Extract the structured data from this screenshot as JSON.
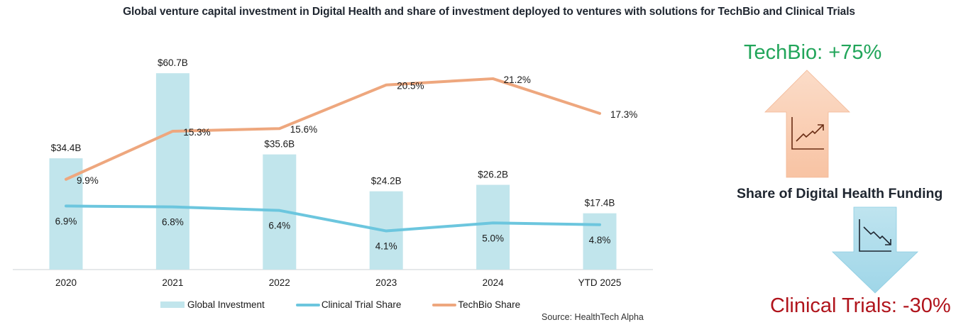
{
  "title": "Global venture capital investment in Digital Health and share of investment deployed to ventures with solutions for TechBio and Clinical Trials",
  "chart_data": {
    "type": "bar",
    "title": "Global venture capital investment in Digital Health and share of investment deployed to ventures with solutions for TechBio and Clinical Trials",
    "categories": [
      "2020",
      "2021",
      "2022",
      "2023",
      "2024",
      "YTD 2025"
    ],
    "series": [
      {
        "name": "Global Investment",
        "type": "bar",
        "unit": "$B",
        "values": [
          34.4,
          60.7,
          35.6,
          24.2,
          26.2,
          17.4
        ],
        "labels": [
          "$34.4B",
          "$60.7B",
          "$35.6B",
          "$24.2B",
          "$26.2B",
          "$17.4B"
        ],
        "color": "#c1e5ec"
      },
      {
        "name": "Clinical Trial Share",
        "type": "line",
        "unit": "%",
        "values": [
          6.9,
          6.8,
          6.4,
          4.1,
          5.0,
          4.8
        ],
        "labels": [
          "6.9%",
          "6.8%",
          "6.4%",
          "4.1%",
          "5.0%",
          "4.8%"
        ],
        "color": "#6cc6de"
      },
      {
        "name": "TechBio Share",
        "type": "line",
        "unit": "%",
        "values": [
          9.9,
          15.3,
          15.6,
          20.5,
          21.2,
          17.3
        ],
        "labels": [
          "9.9%",
          "15.3%",
          "15.6%",
          "20.5%",
          "21.2%",
          "17.3%"
        ],
        "color": "#eea77e"
      }
    ],
    "xlabel": "",
    "ylabel": "",
    "ylim_primary": [
      0,
      61
    ],
    "ylim_secondary": [
      0,
      30
    ],
    "grid": false,
    "legend_position": "bottom"
  },
  "legend": {
    "items": [
      "Global Investment",
      "Clinical Trial Share",
      "TechBio Share"
    ]
  },
  "source": "Source: HealthTech Alpha",
  "callouts": {
    "techbio": "TechBio: +75%",
    "share_heading": "Share of Digital Health Funding",
    "clinical": "Clinical Trials: -30%",
    "techbio_color": "#21a55a",
    "clinical_color": "#b0141c",
    "up_arrow_icon": "trend-up-chart-icon",
    "down_arrow_icon": "trend-down-chart-icon"
  }
}
